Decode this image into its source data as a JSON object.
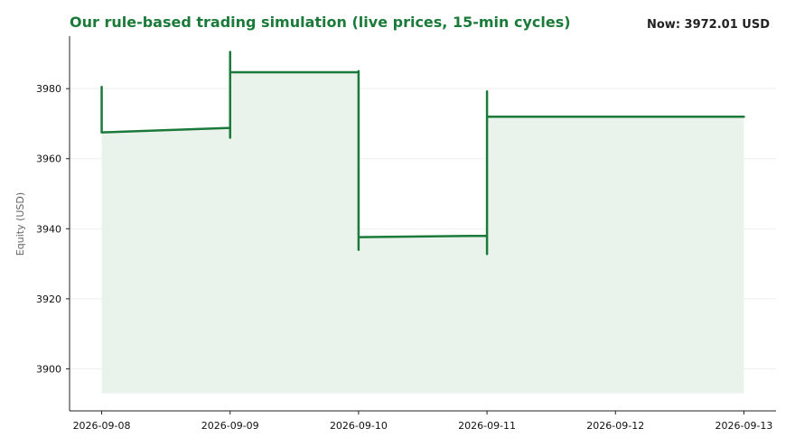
{
  "header": {
    "now_text": "Now: 3972.01 USD"
  },
  "colors": {
    "line": "#1b7a3a",
    "fill": "#e9f3ec",
    "title": "#1b7a3a",
    "grid": "#eeeeee",
    "axis": "#222222"
  },
  "chart_data": {
    "type": "line",
    "title": "Our rule-based trading simulation (live prices, 15-min cycles)",
    "xlabel": "",
    "ylabel": "Equity (USD)",
    "x_type": "date",
    "xlim": [
      "2026-09-07 18:00",
      "2026-09-13 06:00"
    ],
    "ylim": [
      3888,
      3995
    ],
    "fill_baseline": 3893,
    "x_ticks": [
      "2026-09-08",
      "2026-09-09",
      "2026-09-10",
      "2026-09-11",
      "2026-09-12",
      "2026-09-13"
    ],
    "y_ticks": [
      3900,
      3920,
      3940,
      3960,
      3980
    ],
    "grid": true,
    "legend": "none",
    "series": [
      {
        "points": [
          [
            "2026-09-08 00:00",
            3980.5
          ],
          [
            "2026-09-08 00:00",
            3969.0
          ],
          [
            "2026-09-08 00:00",
            3977.5
          ],
          [
            "2026-09-08 00:00",
            3967.5
          ],
          [
            "2026-09-09 00:00",
            3968.8
          ],
          [
            "2026-09-09 00:00",
            3966.0
          ],
          [
            "2026-09-09 00:00",
            3990.5
          ],
          [
            "2026-09-09 00:00",
            3984.7
          ],
          [
            "2026-09-10 00:00",
            3984.7
          ],
          [
            "2026-09-10 00:00",
            3985.0
          ],
          [
            "2026-09-10 00:00",
            3934.0
          ],
          [
            "2026-09-10 00:00",
            3937.6
          ],
          [
            "2026-09-11 00:00",
            3938.0
          ],
          [
            "2026-09-11 00:00",
            3932.8
          ],
          [
            "2026-09-11 00:00",
            3979.2
          ],
          [
            "2026-09-11 00:00",
            3972.0
          ],
          [
            "2026-09-13 00:00",
            3972.0
          ]
        ]
      }
    ]
  }
}
